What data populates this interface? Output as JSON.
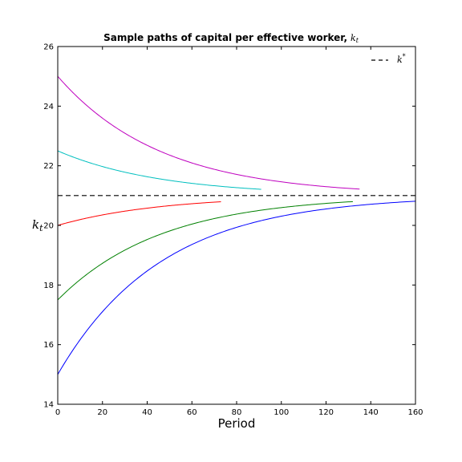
{
  "chart_data": {
    "type": "line",
    "title": "Sample paths of capital per effective worker,",
    "title_symbol": "kt",
    "xlabel": "Period",
    "ylabel": "kt",
    "xlim": [
      0,
      160
    ],
    "ylim": [
      14,
      26
    ],
    "xticks": [
      0,
      20,
      40,
      60,
      80,
      100,
      120,
      140,
      160
    ],
    "yticks": [
      14,
      16,
      18,
      20,
      22,
      24,
      26
    ],
    "grid": false,
    "legend_position": "top-right",
    "steady_state": {
      "label": "k*",
      "value": 21.0,
      "color": "#000000",
      "style": "dashed"
    },
    "series": [
      {
        "color": "#0000ff",
        "x0": 0,
        "x1": 160,
        "y_start": 15.0,
        "y_end": 20.8,
        "model": "exponential_convergence_to_21",
        "decay_rate": 0.0216
      },
      {
        "color": "#008000",
        "x0": 0,
        "x1": 132,
        "y_start": 17.5,
        "y_end": 20.8,
        "model": "exponential_convergence_to_21",
        "decay_rate": 0.0216
      },
      {
        "color": "#ff0000",
        "x0": 0,
        "x1": 73,
        "y_start": 20.0,
        "y_end": 20.8,
        "model": "exponential_convergence_to_21",
        "decay_rate": 0.0216
      },
      {
        "color": "#00bfbf",
        "x0": 0,
        "x1": 91,
        "y_start": 22.5,
        "y_end": 21.2,
        "model": "exponential_convergence_to_21",
        "decay_rate": 0.0216
      },
      {
        "color": "#bf00bf",
        "x0": 0,
        "x1": 135,
        "y_start": 25.0,
        "y_end": 21.2,
        "model": "exponential_convergence_to_21",
        "decay_rate": 0.0216
      }
    ]
  }
}
